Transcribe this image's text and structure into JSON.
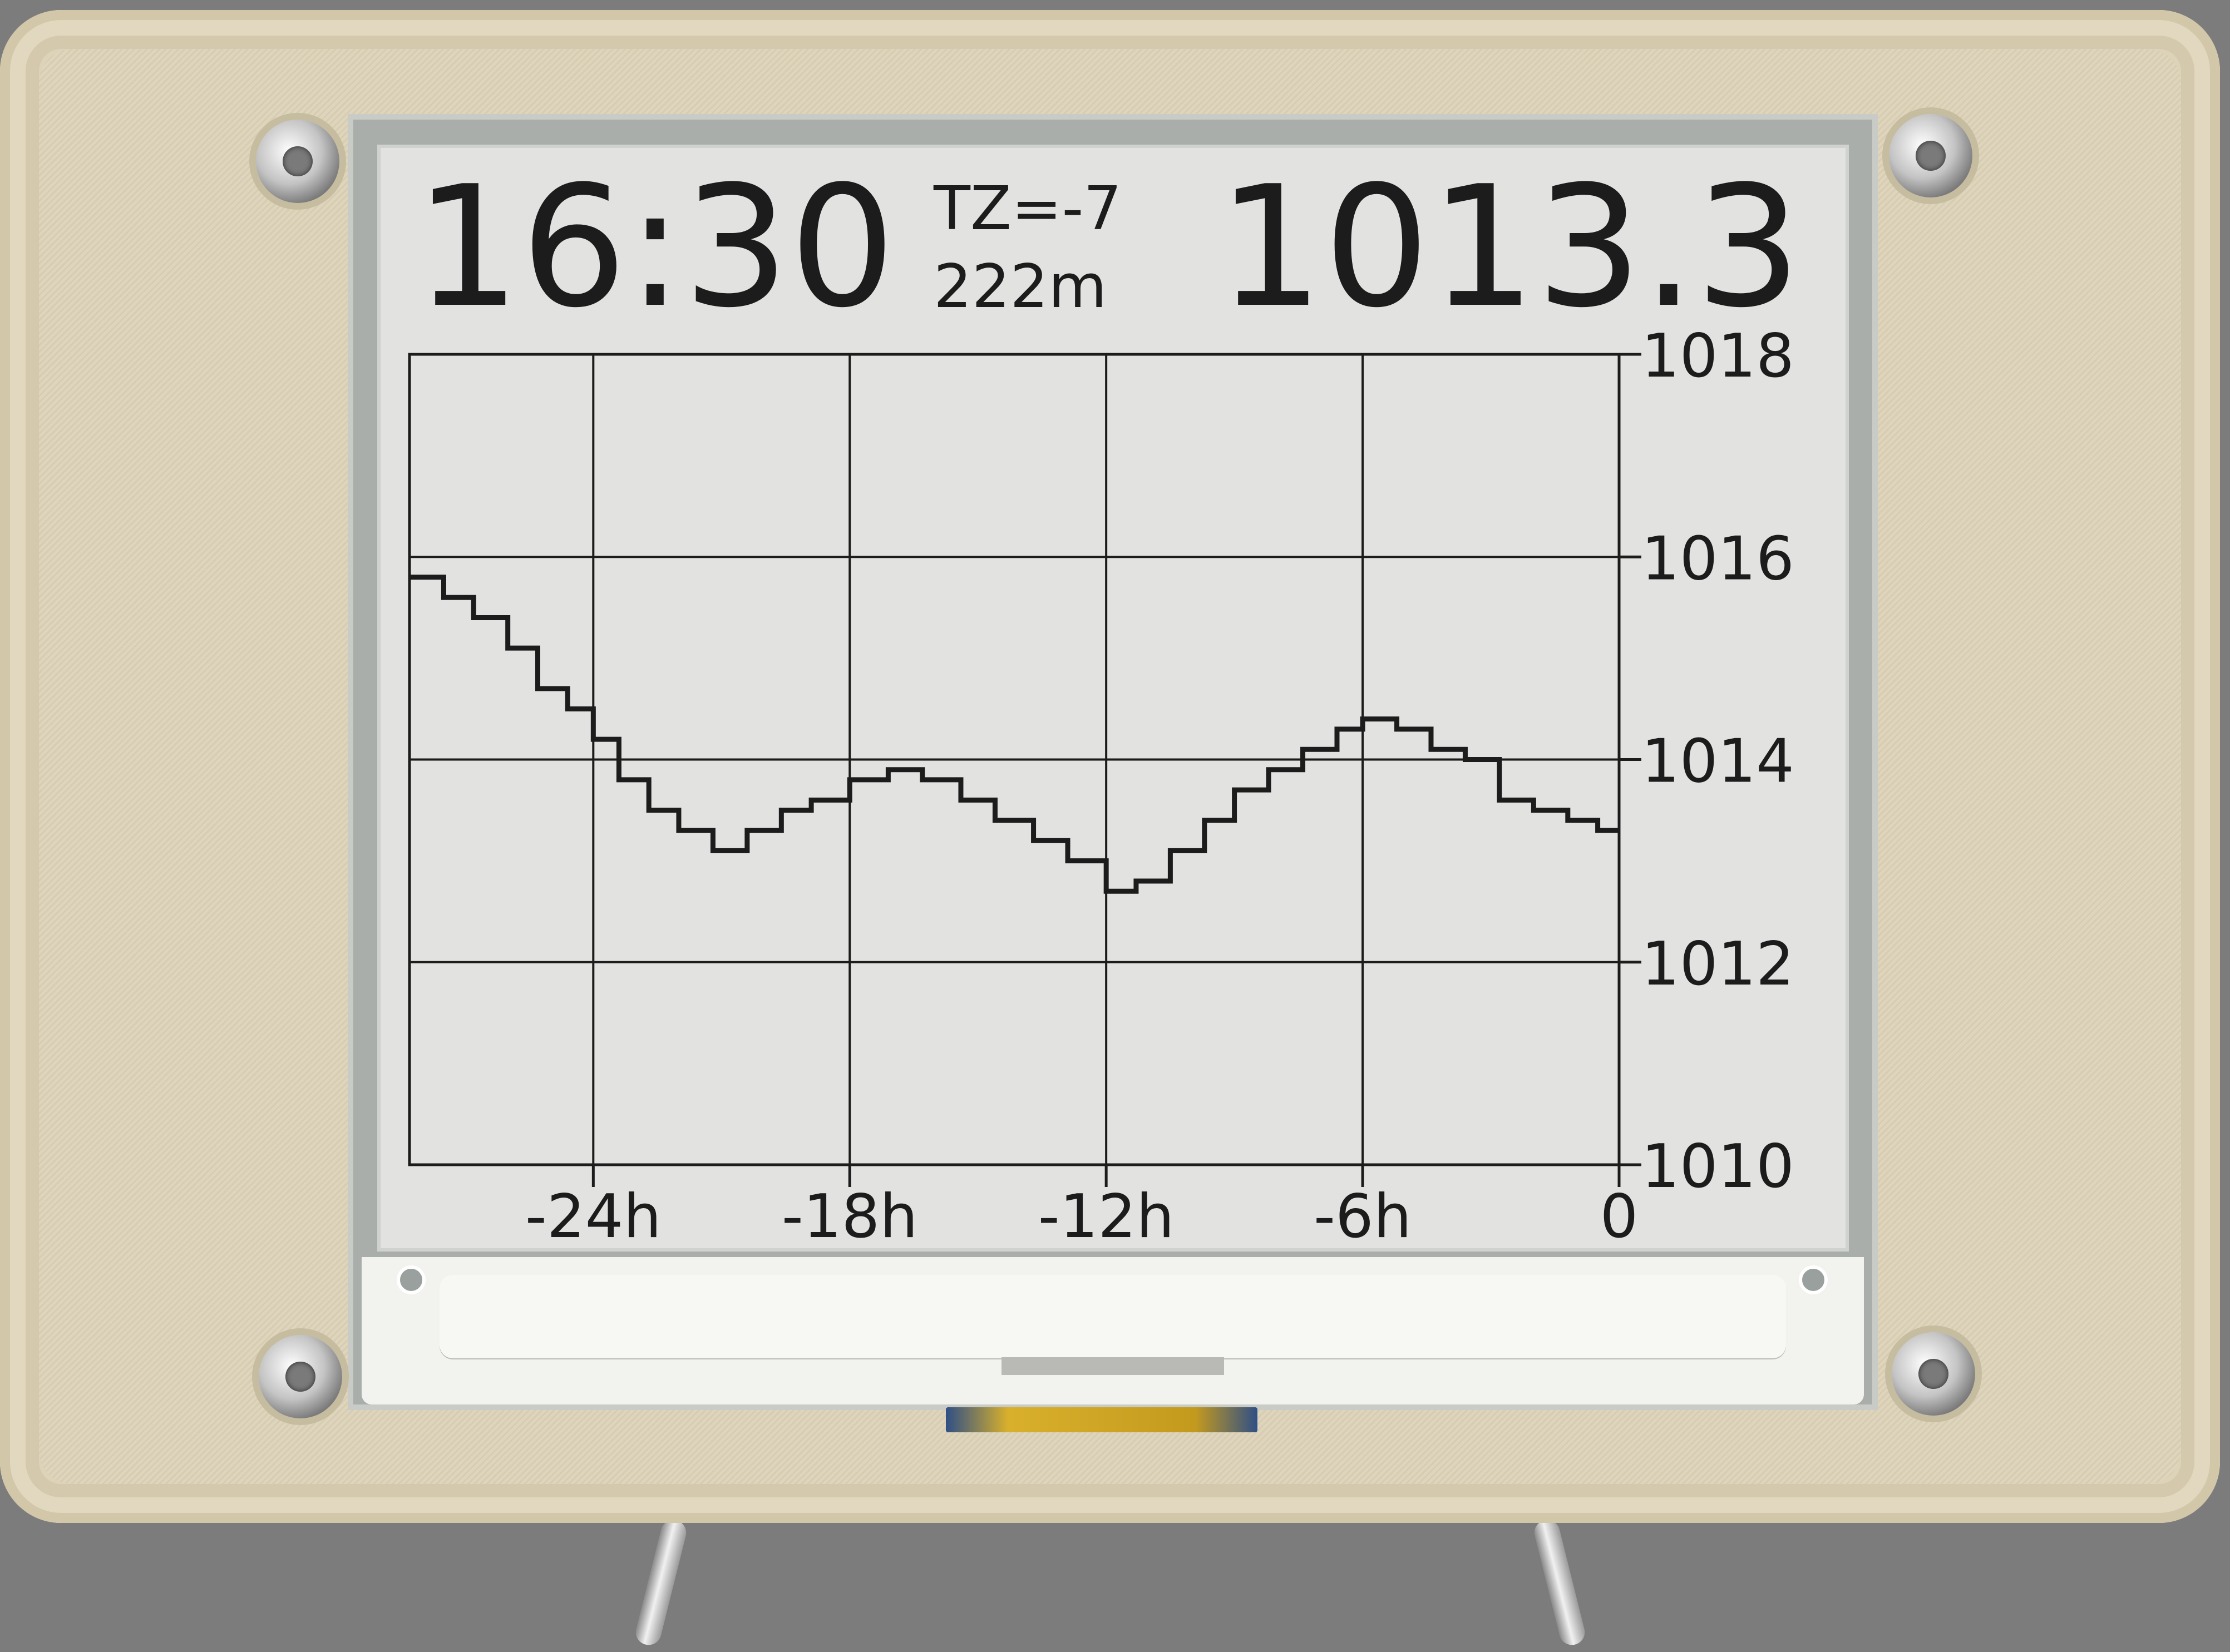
{
  "display": {
    "time": "16:30",
    "timezone": "TZ=-7",
    "altitude": "222m",
    "pressure": "1013.3"
  },
  "chart_data": {
    "type": "line",
    "x_tick_labels": [
      "-24h",
      "-18h",
      "-12h",
      "-6h",
      "0"
    ],
    "x_ticks": [
      -24,
      -18,
      -12,
      -6,
      0
    ],
    "y_tick_labels": [
      "1018",
      "1016",
      "1014",
      "1012",
      "1010"
    ],
    "y_ticks": [
      1018,
      1016,
      1014,
      1012,
      1010
    ],
    "xlim": [
      -28.3,
      0
    ],
    "ylim": [
      1010,
      1018
    ],
    "grid": true,
    "series": [
      {
        "values": [
          {
            "x": -28.3,
            "y": 1015.8
          },
          {
            "x": -27.5,
            "y": 1015.6
          },
          {
            "x": -26.8,
            "y": 1015.4
          },
          {
            "x": -26.0,
            "y": 1015.1
          },
          {
            "x": -25.3,
            "y": 1014.7
          },
          {
            "x": -24.6,
            "y": 1014.5
          },
          {
            "x": -24.0,
            "y": 1014.2
          },
          {
            "x": -23.4,
            "y": 1013.8
          },
          {
            "x": -22.7,
            "y": 1013.5
          },
          {
            "x": -22.0,
            "y": 1013.3
          },
          {
            "x": -21.2,
            "y": 1013.1
          },
          {
            "x": -20.4,
            "y": 1013.3
          },
          {
            "x": -19.6,
            "y": 1013.5
          },
          {
            "x": -18.9,
            "y": 1013.6
          },
          {
            "x": -18.0,
            "y": 1013.8
          },
          {
            "x": -17.1,
            "y": 1013.9
          },
          {
            "x": -16.3,
            "y": 1013.8
          },
          {
            "x": -15.4,
            "y": 1013.6
          },
          {
            "x": -14.6,
            "y": 1013.4
          },
          {
            "x": -13.7,
            "y": 1013.2
          },
          {
            "x": -12.9,
            "y": 1013.0
          },
          {
            "x": -12.0,
            "y": 1012.7
          },
          {
            "x": -11.3,
            "y": 1012.8
          },
          {
            "x": -10.5,
            "y": 1013.1
          },
          {
            "x": -9.7,
            "y": 1013.4
          },
          {
            "x": -9.0,
            "y": 1013.7
          },
          {
            "x": -8.2,
            "y": 1013.9
          },
          {
            "x": -7.4,
            "y": 1014.1
          },
          {
            "x": -6.6,
            "y": 1014.3
          },
          {
            "x": -6.0,
            "y": 1014.4
          },
          {
            "x": -5.2,
            "y": 1014.3
          },
          {
            "x": -4.4,
            "y": 1014.1
          },
          {
            "x": -3.6,
            "y": 1014.0
          },
          {
            "x": -2.8,
            "y": 1013.6
          },
          {
            "x": -2.0,
            "y": 1013.5
          },
          {
            "x": -1.2,
            "y": 1013.4
          },
          {
            "x": -0.5,
            "y": 1013.3
          },
          {
            "x": 0.0,
            "y": 1013.3
          }
        ]
      }
    ]
  }
}
